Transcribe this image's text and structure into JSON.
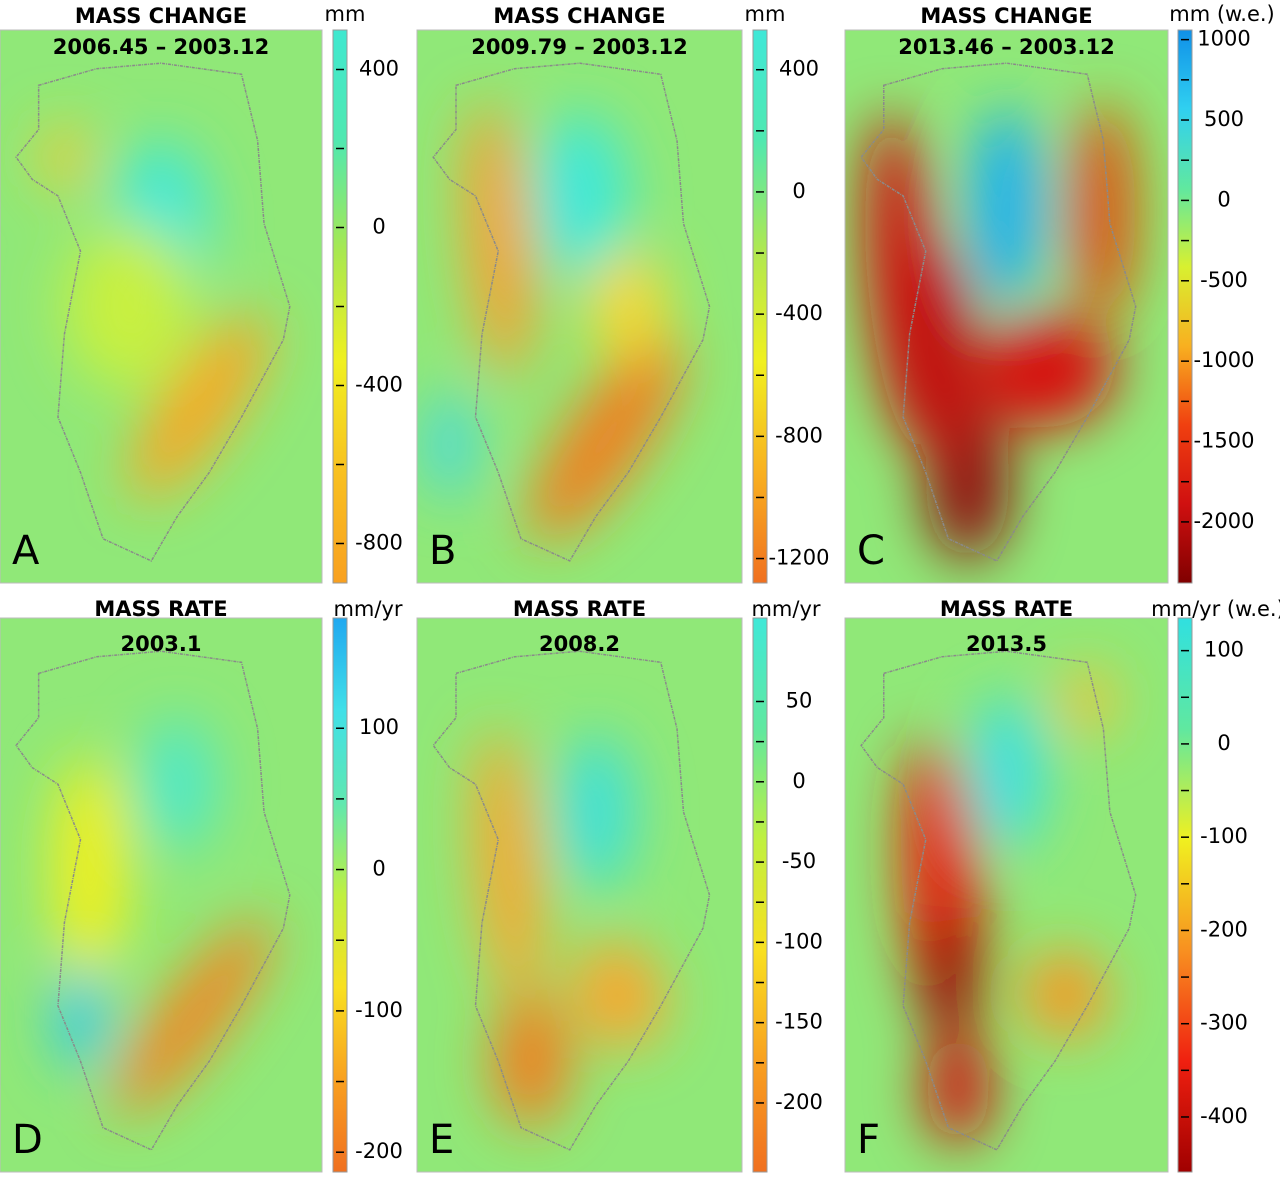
{
  "panels": [
    {
      "letter": "A",
      "title": "MASS CHANGE",
      "period": "2006.45 – 2003.12",
      "unit": "mm",
      "colorbar": {
        "lim": [
          -900,
          500
        ],
        "ticks": [
          400,
          0,
          -400,
          -800
        ]
      }
    },
    {
      "letter": "B",
      "title": "MASS CHANGE",
      "period": "2009.79 – 2003.12",
      "unit": "mm",
      "colorbar": {
        "lim": [
          -1280,
          530
        ],
        "ticks": [
          400,
          0,
          -400,
          -800,
          -1200
        ]
      }
    },
    {
      "letter": "C",
      "title": "MASS CHANGE",
      "period": "2013.46 – 2003.12",
      "unit": "mm (w.e.)",
      "colorbar": {
        "lim": [
          -2380,
          1060
        ],
        "ticks": [
          1000,
          500,
          0,
          -500,
          -1000,
          -1500,
          -2000
        ]
      }
    },
    {
      "letter": "D",
      "title": "MASS RATE",
      "period": "2003.1",
      "unit": "mm/yr",
      "colorbar": {
        "lim": [
          -214,
          178
        ],
        "ticks": [
          100,
          0,
          -100,
          -200
        ]
      }
    },
    {
      "letter": "E",
      "title": "MASS RATE",
      "period": "2008.2",
      "unit": "mm/yr",
      "colorbar": {
        "lim": [
          -243,
          102
        ],
        "ticks": [
          50,
          0,
          -50,
          -100,
          -150,
          -200
        ]
      }
    },
    {
      "letter": "F",
      "title": "MASS RATE",
      "period": "2013.5",
      "unit": "mm/yr (w.e.)",
      "colorbar": {
        "lim": [
          -459,
          135
        ],
        "ticks": [
          100,
          0,
          -100,
          -200,
          -300,
          -400
        ]
      }
    }
  ]
}
